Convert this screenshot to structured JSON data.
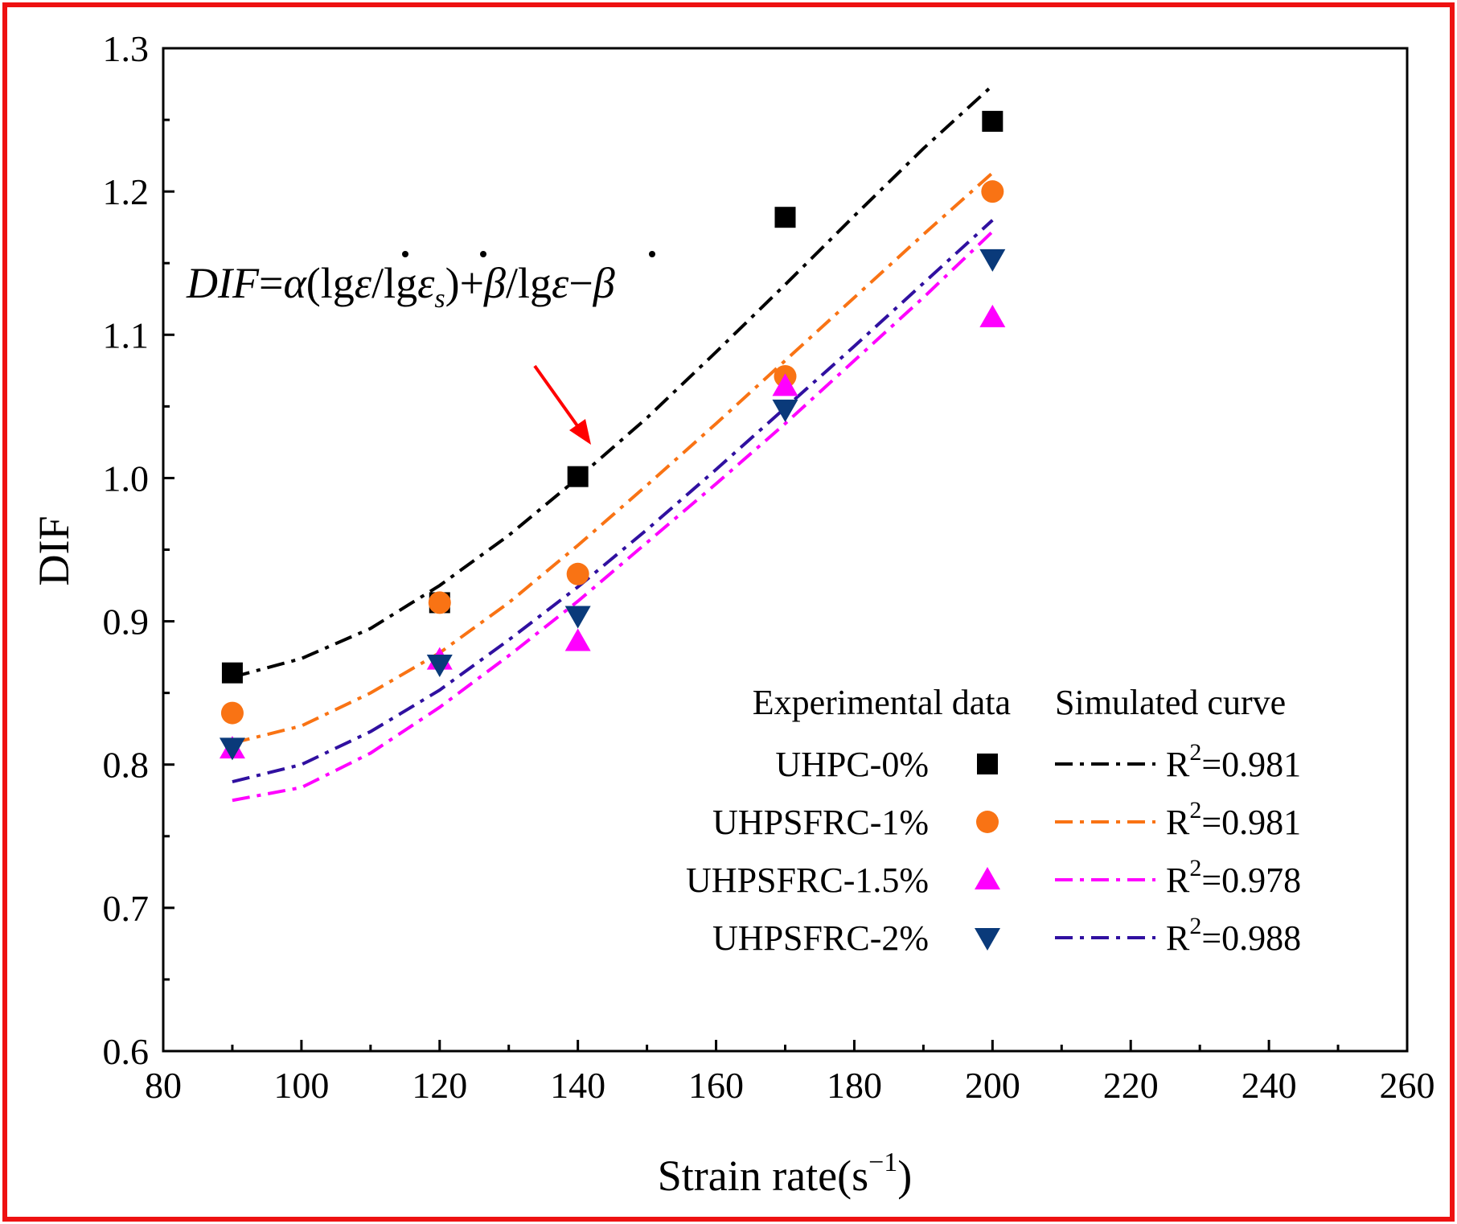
{
  "chart_data": {
    "type": "scatter",
    "title": "",
    "xlabel": "Strain rate(s",
    "xlabel_sup": "−1",
    "xlabel_close": ")",
    "ylabel": "DIF",
    "xlim": [
      80,
      260
    ],
    "ylim": [
      0.6,
      1.3
    ],
    "x_ticks": [
      80,
      100,
      120,
      140,
      160,
      180,
      200,
      220,
      240,
      260
    ],
    "y_ticks": [
      "0.6",
      "0.7",
      "0.8",
      "0.9",
      "1.0",
      "1.1",
      "1.2",
      "1.3"
    ],
    "x": [
      90,
      120,
      140,
      170,
      200
    ],
    "series": [
      {
        "name": "UHPC-0%",
        "marker": "square",
        "color": "#000000",
        "values": [
          0.864,
          0.913,
          1.001,
          1.182,
          1.249
        ]
      },
      {
        "name": "UHPSFRC-1%",
        "marker": "circle",
        "color": "#f97314",
        "values": [
          0.836,
          0.913,
          0.933,
          1.071,
          1.2
        ]
      },
      {
        "name": "UHPSFRC-1.5%",
        "marker": "triangle-up",
        "color": "#ff00ff",
        "values": [
          0.811,
          0.873,
          0.886,
          1.064,
          1.112
        ]
      },
      {
        "name": "UHPSFRC-2%",
        "marker": "triangle-down",
        "color": "#0a3a7a",
        "values": [
          0.812,
          0.87,
          0.904,
          1.048,
          1.153
        ]
      }
    ],
    "fits": [
      {
        "series": "UHPC-0%",
        "r2": "R",
        "r2_sup": "2",
        "r2_value": "=0.981",
        "color": "#000000",
        "x": [
          90,
          100,
          110,
          120,
          130,
          140,
          150,
          160,
          170,
          180,
          190,
          200
        ],
        "y": [
          0.861,
          0.874,
          0.895,
          0.925,
          0.96,
          1.0,
          1.042,
          1.088,
          1.135,
          1.183,
          1.23,
          1.274
        ]
      },
      {
        "series": "UHPSFRC-1%",
        "r2": "R",
        "r2_sup": "2",
        "r2_value": "=0.981",
        "color": "#f97314",
        "x": [
          90,
          100,
          110,
          120,
          130,
          140,
          150,
          160,
          170,
          180,
          190,
          200
        ],
        "y": [
          0.815,
          0.827,
          0.85,
          0.878,
          0.913,
          0.953,
          0.995,
          1.038,
          1.082,
          1.126,
          1.17,
          1.213
        ]
      },
      {
        "series": "UHPSFRC-1.5%",
        "r2": "R",
        "r2_sup": "2",
        "r2_value": "=0.978",
        "color": "#ff00ff",
        "x": [
          90,
          100,
          110,
          120,
          130,
          140,
          150,
          160,
          170,
          180,
          190,
          200
        ],
        "y": [
          0.775,
          0.784,
          0.808,
          0.84,
          0.876,
          0.914,
          0.955,
          0.996,
          1.038,
          1.082,
          1.126,
          1.172
        ]
      },
      {
        "series": "UHPSFRC-2%",
        "r2": "R",
        "r2_sup": "2",
        "r2_value": "=0.988",
        "color": "#3010a0",
        "x": [
          90,
          100,
          110,
          120,
          130,
          140,
          150,
          160,
          170,
          180,
          190,
          200
        ],
        "y": [
          0.788,
          0.8,
          0.823,
          0.852,
          0.887,
          0.924,
          0.964,
          1.006,
          1.049,
          1.092,
          1.136,
          1.18
        ]
      }
    ],
    "legend": {
      "position": "bottom-right",
      "header_left": "Experimental data",
      "header_right": "Simulated curve"
    },
    "annotation": {
      "text_dif": "DIF",
      "text_eq": "=",
      "text_alpha": "α",
      "text_open": "(lg",
      "text_eps1": "ε",
      "text_slash": "/lg",
      "text_eps2": "ε",
      "text_sub_s": "s",
      "text_close": ")+",
      "text_beta1": "β",
      "text_slash2": "/lg",
      "text_eps3": "ε",
      "text_minus": "−",
      "text_beta2": "β",
      "arrow_color": "#ff0000"
    },
    "frame_color": "#ee1111"
  }
}
